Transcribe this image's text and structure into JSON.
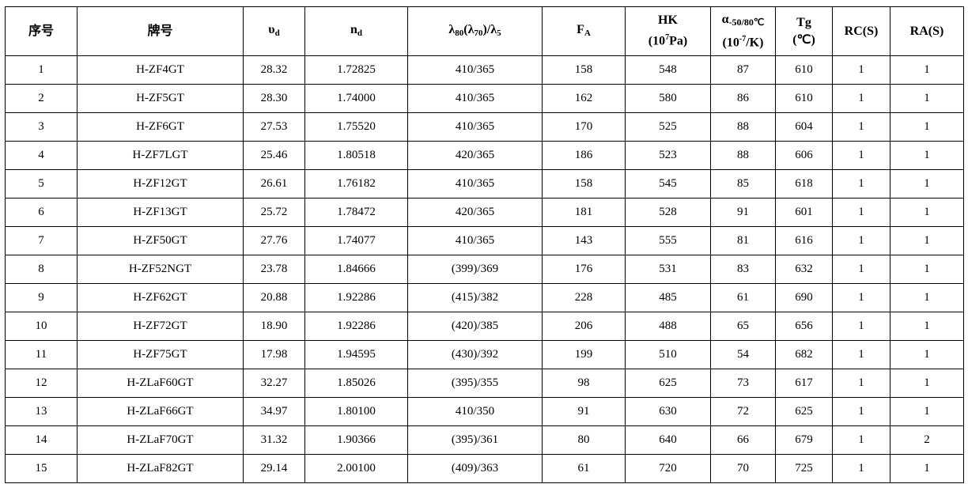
{
  "headers": {
    "no": "序号",
    "grade": "牌号",
    "vd": "υ",
    "vd_sub": "d",
    "nd": "n",
    "nd_sub": "d",
    "lam_a": "λ",
    "lam_a_sub": "80",
    "lam_b": "(λ",
    "lam_b_sub": "70",
    "lam_c": ")/λ",
    "lam_c_sub": "5",
    "fa": "F",
    "fa_sub": "A",
    "hk": "HK",
    "hk_unit_a": "(10",
    "hk_unit_sup": "7",
    "hk_unit_b": "Pa)",
    "alpha": "α",
    "alpha_sub": "-50/80℃",
    "alpha_unit_a": "(10",
    "alpha_unit_sup": "-7",
    "alpha_unit_b": "/K)",
    "tg": "Tg",
    "tg_unit": "(℃)",
    "rc": "RC(S)",
    "ra": "RA(S)"
  },
  "rows": [
    [
      "1",
      "H-ZF4GT",
      "28.32",
      "1.72825",
      "410/365",
      "158",
      "548",
      "87",
      "610",
      "1",
      "1"
    ],
    [
      "2",
      "H-ZF5GT",
      "28.30",
      "1.74000",
      "410/365",
      "162",
      "580",
      "86",
      "610",
      "1",
      "1"
    ],
    [
      "3",
      "H-ZF6GT",
      "27.53",
      "1.75520",
      "410/365",
      "170",
      "525",
      "88",
      "604",
      "1",
      "1"
    ],
    [
      "4",
      "H-ZF7LGT",
      "25.46",
      "1.80518",
      "420/365",
      "186",
      "523",
      "88",
      "606",
      "1",
      "1"
    ],
    [
      "5",
      "H-ZF12GT",
      "26.61",
      "1.76182",
      "410/365",
      "158",
      "545",
      "85",
      "618",
      "1",
      "1"
    ],
    [
      "6",
      "H-ZF13GT",
      "25.72",
      "1.78472",
      "420/365",
      "181",
      "528",
      "91",
      "601",
      "1",
      "1"
    ],
    [
      "7",
      "H-ZF50GT",
      "27.76",
      "1.74077",
      "410/365",
      "143",
      "555",
      "81",
      "616",
      "1",
      "1"
    ],
    [
      "8",
      "H-ZF52NGT",
      "23.78",
      "1.84666",
      "(399)/369",
      "176",
      "531",
      "83",
      "632",
      "1",
      "1"
    ],
    [
      "9",
      "H-ZF62GT",
      "20.88",
      "1.92286",
      "(415)/382",
      "228",
      "485",
      "61",
      "690",
      "1",
      "1"
    ],
    [
      "10",
      "H-ZF72GT",
      "18.90",
      "1.92286",
      "(420)/385",
      "206",
      "488",
      "65",
      "656",
      "1",
      "1"
    ],
    [
      "11",
      "H-ZF75GT",
      "17.98",
      "1.94595",
      "(430)/392",
      "199",
      "510",
      "54",
      "682",
      "1",
      "1"
    ],
    [
      "12",
      "H-ZLaF60GT",
      "32.27",
      "1.85026",
      "(395)/355",
      "98",
      "625",
      "73",
      "617",
      "1",
      "1"
    ],
    [
      "13",
      "H-ZLaF66GT",
      "34.97",
      "1.80100",
      "410/350",
      "91",
      "630",
      "72",
      "625",
      "1",
      "1"
    ],
    [
      "14",
      "H-ZLaF70GT",
      "31.32",
      "1.90366",
      "(395)/361",
      "80",
      "640",
      "66",
      "679",
      "1",
      "2"
    ],
    [
      "15",
      "H-ZLaF82GT",
      "29.14",
      "2.00100",
      "(409)/363",
      "61",
      "720",
      "70",
      "725",
      "1",
      "1"
    ]
  ]
}
